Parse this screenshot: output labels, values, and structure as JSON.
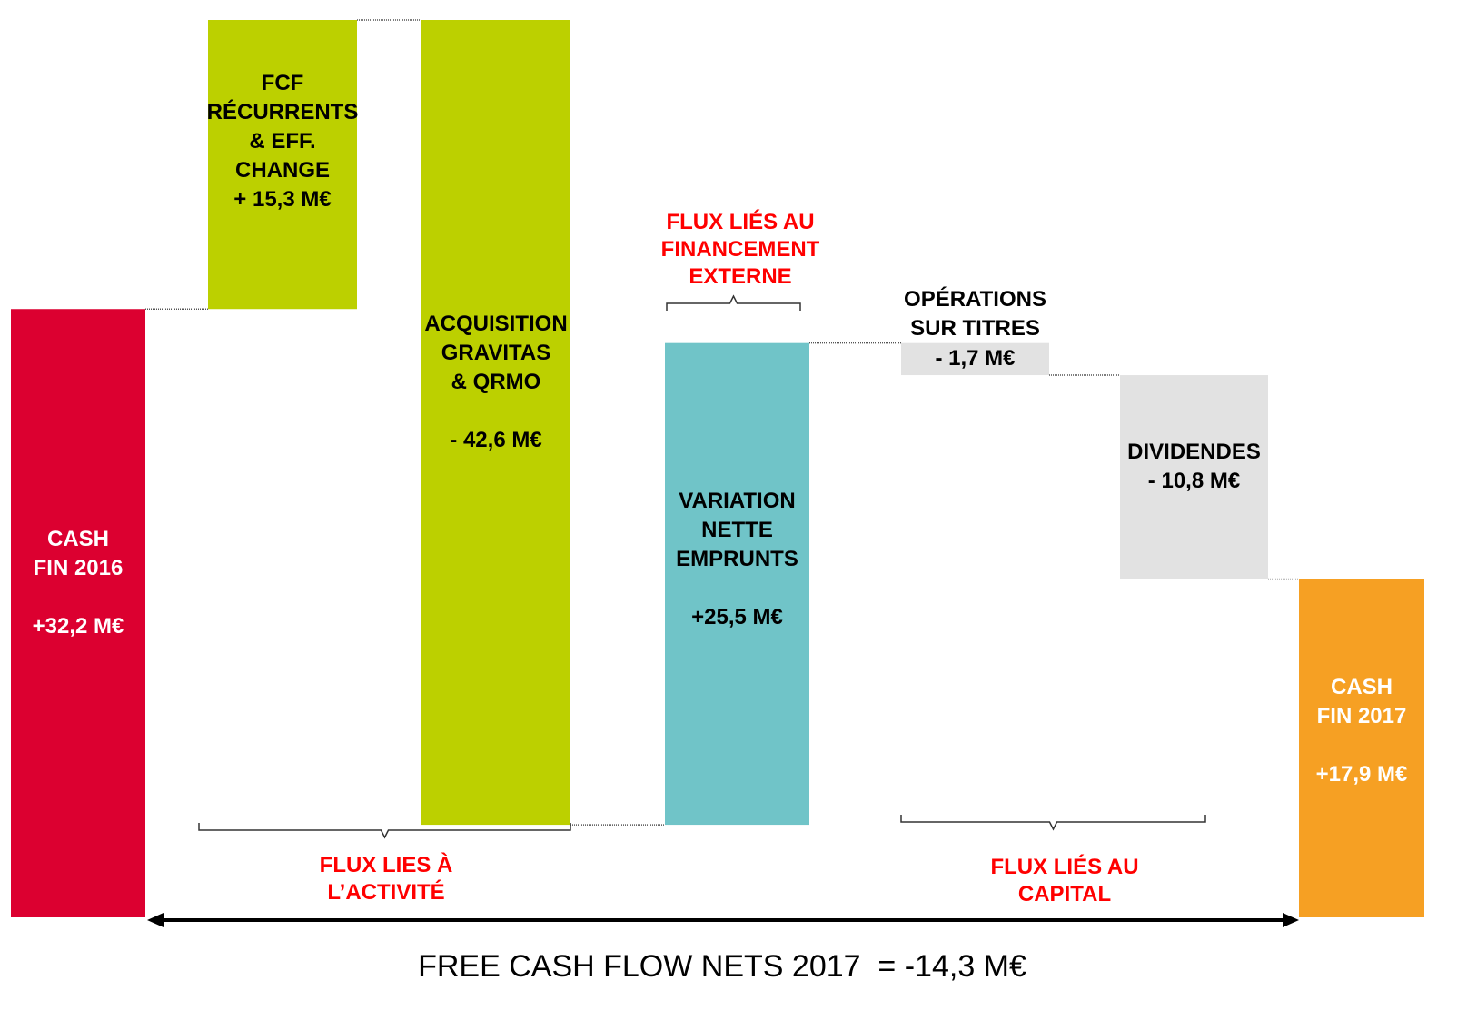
{
  "chart_data": {
    "type": "waterfall",
    "categories": [
      "CASH\nFIN 2016",
      "FCF\nRÉCURRENTS\n& EFF.\nCHANGE",
      "ACQUISITION\nGRAVITAS\n& QRMO",
      "VARIATION\nNETTE\nEMPRUNTS",
      "OPÉRATIONS\nSUR TITRES",
      "DIVIDENDES",
      "CASH\nFIN 2017"
    ],
    "values": [
      32.2,
      15.3,
      -42.6,
      25.5,
      -1.7,
      -10.8,
      17.9
    ],
    "value_labels": [
      "+32,2 M€",
      "+ 15,3 M€",
      "- 42,6 M€",
      "+25,5 M€",
      "- 1,7 M€",
      "- 10,8 M€",
      "+17,9 M€"
    ],
    "colors": [
      "#dc0030",
      "#bcd000",
      "#bcd000",
      "#70c4c8",
      "#e2e2e2",
      "#e2e2e2",
      "#f6a023"
    ],
    "label_colors": [
      "#ffffff",
      "#000000",
      "#000000",
      "#000000",
      "#000000",
      "#000000",
      "#ffffff"
    ],
    "annotations": [
      "FLUX LIES À\nL’ACTIVITÉ",
      "FLUX LIÉS AU\nFINANCEMENT\nEXTERNE",
      "FLUX LIÉS AU\nCAPITAL"
    ],
    "footer": "FREE CASH FLOW NETS 2017  = -14,3 M€"
  }
}
